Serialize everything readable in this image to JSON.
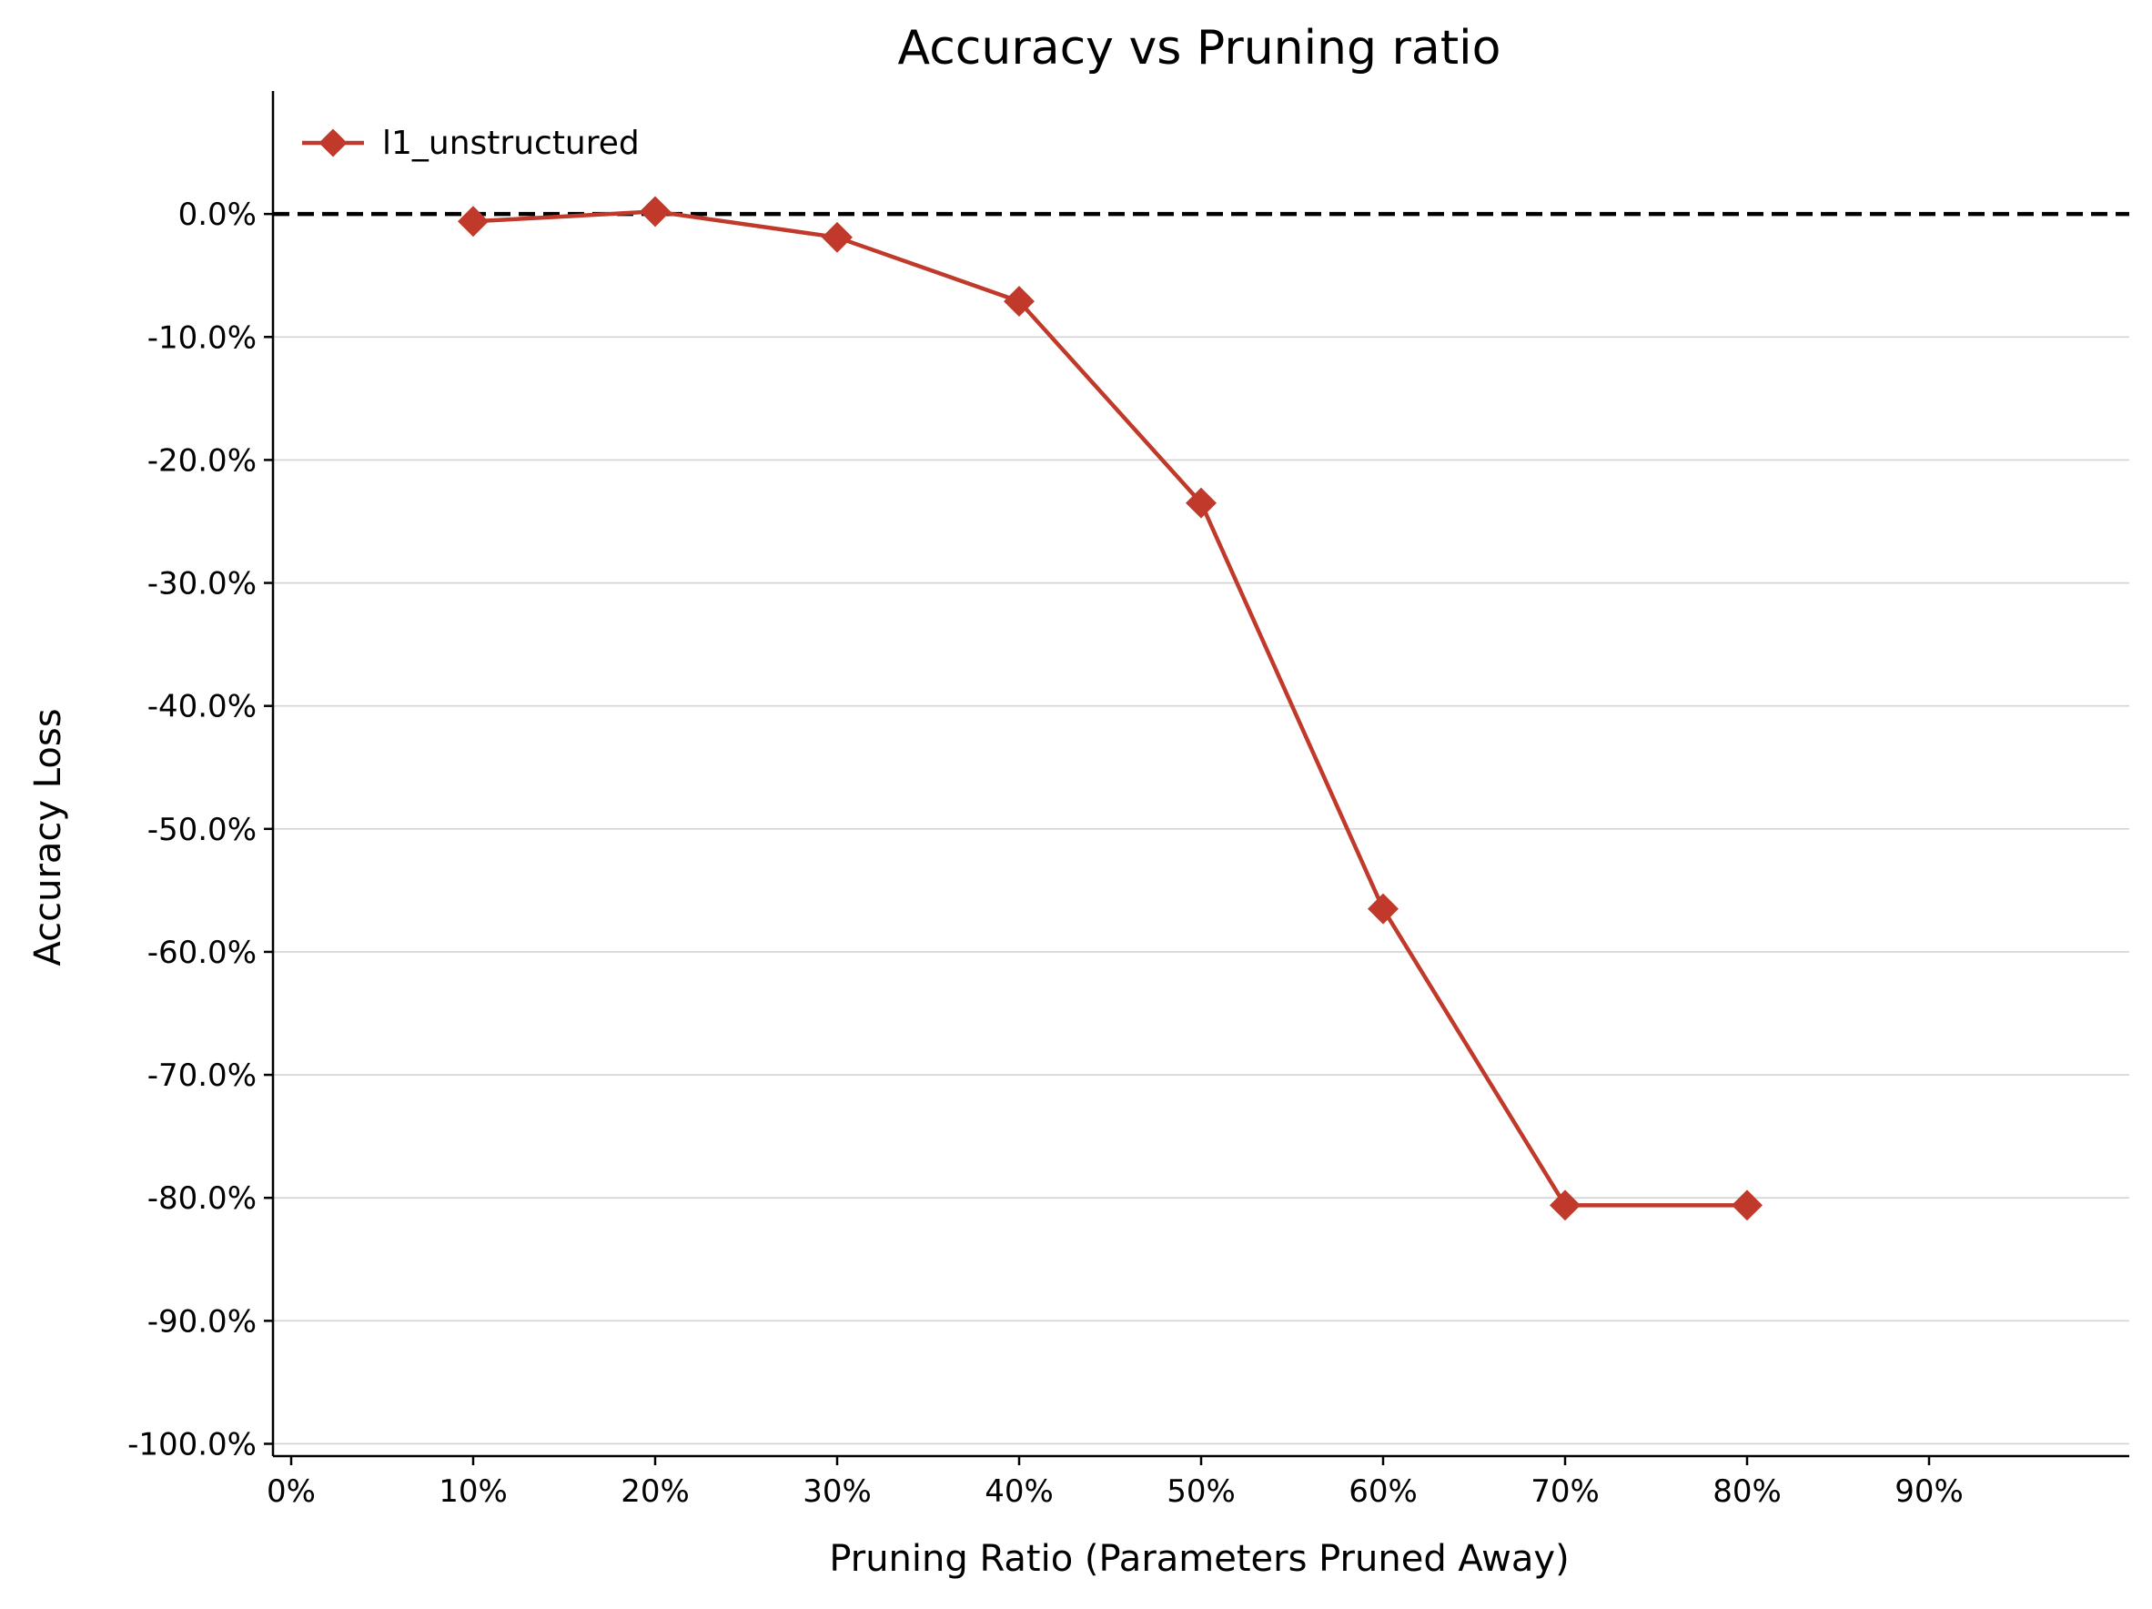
{
  "chart_data": {
    "type": "line",
    "title": "Accuracy vs Pruning ratio",
    "xlabel": "Pruning Ratio (Parameters Pruned Away)",
    "ylabel": "Accuracy Loss",
    "x_tick_labels": [
      "0%",
      "10%",
      "20%",
      "30%",
      "40%",
      "50%",
      "60%",
      "70%",
      "80%",
      "90%"
    ],
    "y_tick_labels": [
      "0.0%",
      "-10.0%",
      "-20.0%",
      "-30.0%",
      "-40.0%",
      "-50.0%",
      "-60.0%",
      "-70.0%",
      "-80.0%",
      "-90.0%",
      "-100.0%"
    ],
    "xlim": [
      -1,
      101
    ],
    "ylim": [
      -101,
      10
    ],
    "grid": "horizontal",
    "baseline": 0,
    "legend_position": "top-left",
    "series": [
      {
        "name": "l1_unstructured",
        "color": "#c0392b",
        "marker": "diamond",
        "x": [
          10,
          20,
          30,
          40,
          50,
          60,
          70,
          80
        ],
        "y": [
          -0.6,
          0.2,
          -1.9,
          -7.1,
          -23.5,
          -56.5,
          -80.6,
          -80.6
        ]
      }
    ]
  }
}
